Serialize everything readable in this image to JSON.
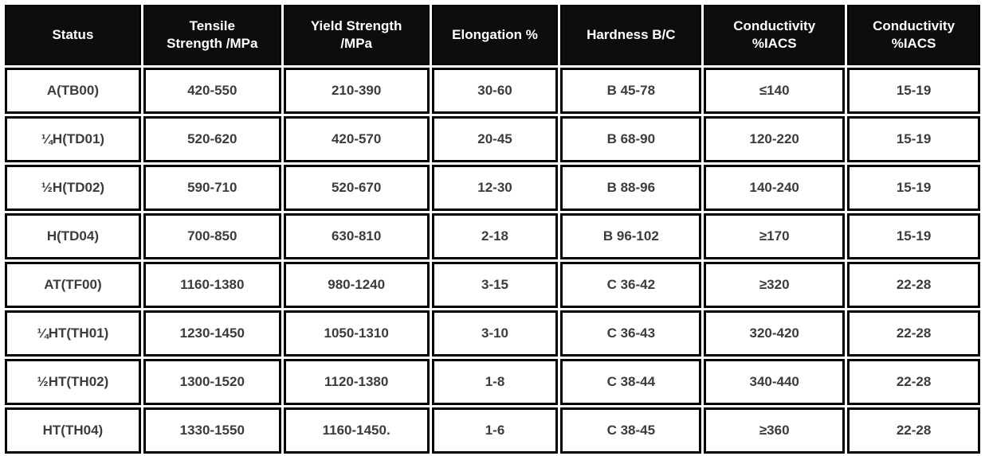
{
  "colors": {
    "header_bg": "#0d0d0d",
    "header_text": "#ffffff",
    "body_text": "#3c3c3c",
    "border": "#000000",
    "row_bg": "#ffffff"
  },
  "table": {
    "headers": [
      "Status",
      "Tensile\nStrength /MPa",
      "Yield Strength\n/MPa",
      "Elongation %",
      "Hardness B/C",
      "Conductivity\n%IACS",
      "Conductivity\n%IACS"
    ],
    "rows": [
      [
        "A(TB00)",
        "420-550",
        "210-390",
        "30-60",
        "B 45-78",
        "≤140",
        "15-19"
      ],
      [
        "¼H(TD01)",
        "520-620",
        "420-570",
        "20-45",
        "B 68-90",
        "120-220",
        "15-19"
      ],
      [
        "½H(TD02)",
        "590-710",
        "520-670",
        "12-30",
        "B 88-96",
        "140-240",
        "15-19"
      ],
      [
        "H(TD04)",
        "700-850",
        "630-810",
        "2-18",
        "B 96-102",
        "≥170",
        "15-19"
      ],
      [
        "AT(TF00)",
        "1160-1380",
        "980-1240",
        "3-15",
        "C 36-42",
        "≥320",
        "22-28"
      ],
      [
        "¼HT(TH01)",
        "1230-1450",
        "1050-1310",
        "3-10",
        "C 36-43",
        "320-420",
        "22-28"
      ],
      [
        "½HT(TH02)",
        "1300-1520",
        "1120-1380",
        "1-8",
        "C 38-44",
        "340-440",
        "22-28"
      ],
      [
        "HT(TH04)",
        "1330-1550",
        "1160-1450.",
        "1-6",
        "C 38-45",
        "≥360",
        "22-28"
      ]
    ]
  },
  "chart_data": {
    "type": "table",
    "title": "Material temper properties table",
    "columns": [
      "Status",
      "Tensile Strength /MPa",
      "Yield Strength /MPa",
      "Elongation %",
      "Hardness B/C",
      "Conductivity %IACS",
      "Conductivity %IACS"
    ],
    "rows": [
      [
        "A(TB00)",
        "420-550",
        "210-390",
        "30-60",
        "B 45-78",
        "≤140",
        "15-19"
      ],
      [
        "¼H(TD01)",
        "520-620",
        "420-570",
        "20-45",
        "B 68-90",
        "120-220",
        "15-19"
      ],
      [
        "½H(TD02)",
        "590-710",
        "520-670",
        "12-30",
        "B 88-96",
        "140-240",
        "15-19"
      ],
      [
        "H(TD04)",
        "700-850",
        "630-810",
        "2-18",
        "B 96-102",
        "≥170",
        "15-19"
      ],
      [
        "AT(TF00)",
        "1160-1380",
        "980-1240",
        "3-15",
        "C 36-42",
        "≥320",
        "22-28"
      ],
      [
        "¼HT(TH01)",
        "1230-1450",
        "1050-1310",
        "3-10",
        "C 36-43",
        "320-420",
        "22-28"
      ],
      [
        "½HT(TH02)",
        "1300-1520",
        "1120-1380",
        "1-8",
        "C 38-44",
        "340-440",
        "22-28"
      ],
      [
        "HT(TH04)",
        "1330-1550",
        "1160-1450.",
        "1-6",
        "C 38-45",
        "≥360",
        "22-28"
      ]
    ]
  }
}
